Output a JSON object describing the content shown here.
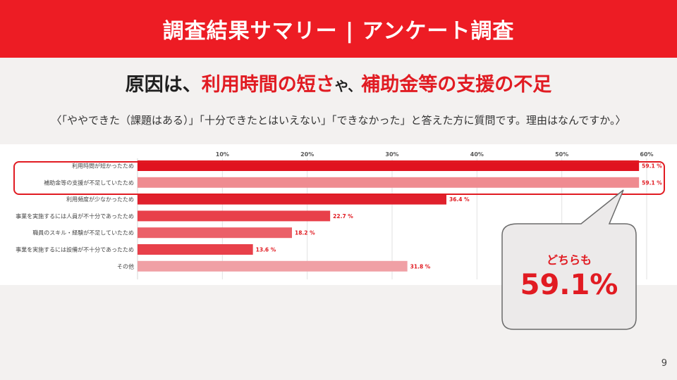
{
  "header": {
    "title": "調査結果サマリー | アンケート調査"
  },
  "headline": {
    "part1": "原因は、",
    "part2": "利用時間の短さ",
    "part3": "や、",
    "part4": "補助金等の支援の不足"
  },
  "question": "〈「ややできた（課題はある）」「十分できたとはいえない」「できなかった」と答えた方に質問です。理由はなんですか。〉",
  "callout": {
    "subtitle": "どちらも",
    "value": "59.1%"
  },
  "page_number": "9",
  "colors": {
    "accent": "#ed1c24",
    "bar_dark": "#e0121f",
    "bar_mid": "#e8404a",
    "bar_light": "#ef8b90",
    "bar_lighter": "#f0a0a5"
  },
  "chart_data": {
    "type": "bar",
    "orientation": "horizontal",
    "categories": [
      "利用時間が短かったため",
      "補助金等の支援が不足していたため",
      "利用頻度が少なかったため",
      "事業を実施するには人員が不十分であったため",
      "職員のスキル・経験が不足していたため",
      "事業を実施するには設備が不十分であったため",
      "その他"
    ],
    "values": [
      59.1,
      59.1,
      36.4,
      22.7,
      18.2,
      13.6,
      31.8
    ],
    "value_labels": [
      "59.1 %",
      "59.1 %",
      "36.4 %",
      "22.7 %",
      "18.2 %",
      "13.6 %",
      "31.8 %"
    ],
    "bar_colors": [
      "#e0121f",
      "#ef8b90",
      "#e0202c",
      "#e8404a",
      "#eb6068",
      "#e8404a",
      "#f0a0a5"
    ],
    "xticks": [
      "10%",
      "20%",
      "30%",
      "40%",
      "50%",
      "60%"
    ],
    "xtick_values": [
      10,
      20,
      30,
      40,
      50,
      60
    ],
    "xlim": [
      0,
      60
    ],
    "grid": true,
    "legend": "none"
  }
}
